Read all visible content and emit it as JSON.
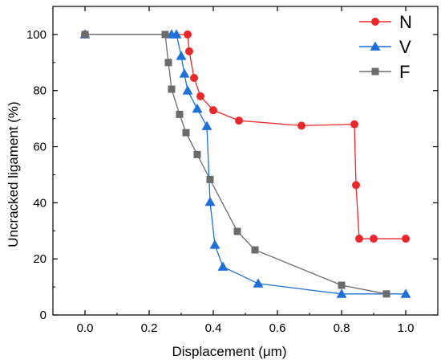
{
  "chart_data": {
    "type": "line",
    "title": "",
    "xlabel": "Displacement (μm)",
    "ylabel": "Uncracked ligament (%)",
    "xlim": [
      -0.1,
      1.1
    ],
    "ylim": [
      0,
      110
    ],
    "xticks": [
      0.0,
      0.2,
      0.4,
      0.6,
      0.8,
      1.0
    ],
    "xtick_labels": [
      "0.0",
      "0.2",
      "0.4",
      "0.6",
      "0.8",
      "1.0"
    ],
    "yticks": [
      0,
      20,
      40,
      60,
      80,
      100
    ],
    "ytick_labels": [
      "0",
      "20",
      "40",
      "60",
      "80",
      "100"
    ],
    "grid": false,
    "legend_position": "top-right",
    "series": [
      {
        "name": "N",
        "color": "#e8282b",
        "marker": "circle",
        "x": [
          0.0,
          0.32,
          0.325,
          0.34,
          0.36,
          0.4,
          0.48,
          0.675,
          0.84,
          0.845,
          0.855,
          0.9,
          1.0
        ],
        "y": [
          100,
          100,
          94,
          84.5,
          78,
          73,
          69.3,
          67.5,
          68,
          46.3,
          27.2,
          27.2,
          27.2
        ]
      },
      {
        "name": "V",
        "color": "#1f6fd6",
        "marker": "triangle",
        "x": [
          0.0,
          0.27,
          0.285,
          0.3,
          0.31,
          0.32,
          0.35,
          0.38,
          0.39,
          0.405,
          0.43,
          0.54,
          0.8,
          1.0
        ],
        "y": [
          100,
          100,
          100,
          92.3,
          86,
          80,
          73.5,
          67.3,
          40.3,
          25,
          17.2,
          11.2,
          7.5,
          7.5
        ]
      },
      {
        "name": "F",
        "color": "#6b6b6b",
        "marker": "square",
        "x": [
          0.0,
          0.25,
          0.26,
          0.27,
          0.295,
          0.315,
          0.35,
          0.39,
          0.475,
          0.53,
          0.8,
          0.94
        ],
        "y": [
          100,
          100,
          90,
          80.5,
          71.5,
          65,
          57.2,
          48.3,
          29.8,
          23.2,
          10.6,
          7.5
        ]
      }
    ]
  }
}
